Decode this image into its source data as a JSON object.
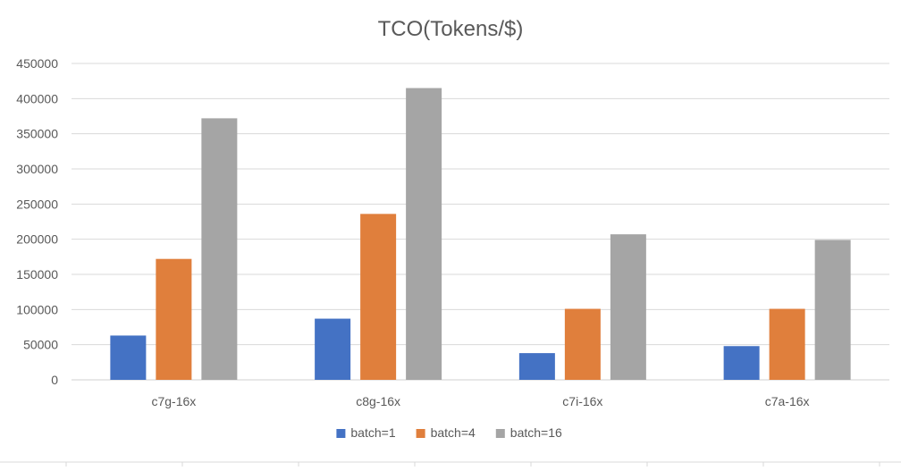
{
  "chart_data": {
    "type": "bar",
    "title": "TCO(Tokens/$)",
    "xlabel": "",
    "ylabel": "",
    "categories": [
      "c7g-16x",
      "c8g-16x",
      "c7i-16x",
      "c7a-16x"
    ],
    "series": [
      {
        "name": "batch=1",
        "values": [
          63000,
          87000,
          38000,
          48000
        ],
        "color": "#4472c4"
      },
      {
        "name": "batch=4",
        "values": [
          172000,
          236000,
          101000,
          101000
        ],
        "color": "#e07f3c"
      },
      {
        "name": "batch=16",
        "values": [
          372000,
          415000,
          207000,
          199000
        ],
        "color": "#a5a5a5"
      }
    ],
    "ylim": [
      0,
      450000
    ],
    "yticks": [
      0,
      50000,
      100000,
      150000,
      200000,
      250000,
      300000,
      350000,
      400000,
      450000
    ],
    "grid": true,
    "legend": "bottom-center"
  }
}
